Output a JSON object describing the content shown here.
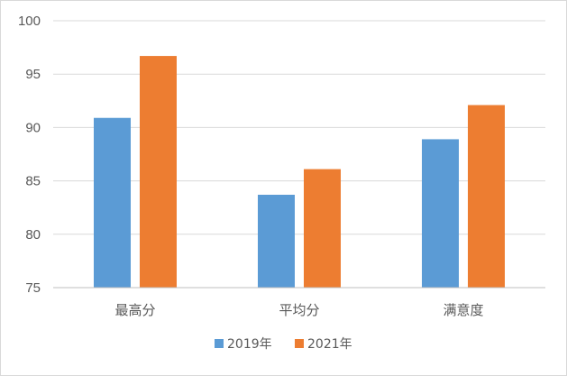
{
  "chart_data": {
    "type": "bar",
    "categories": [
      "最高分",
      "平均分",
      "满意度"
    ],
    "series": [
      {
        "name": "2019年",
        "color": "#5b9bd5",
        "values": [
          90.9,
          83.7,
          88.9
        ]
      },
      {
        "name": "2021年",
        "color": "#ed7d31",
        "values": [
          96.7,
          86.1,
          92.1
        ]
      }
    ],
    "yticks": [
      75,
      80,
      85,
      90,
      95,
      100
    ],
    "ylim": [
      75,
      100
    ],
    "grid": true,
    "legend_position": "bottom",
    "title": "",
    "xlabel": "",
    "ylabel": ""
  }
}
